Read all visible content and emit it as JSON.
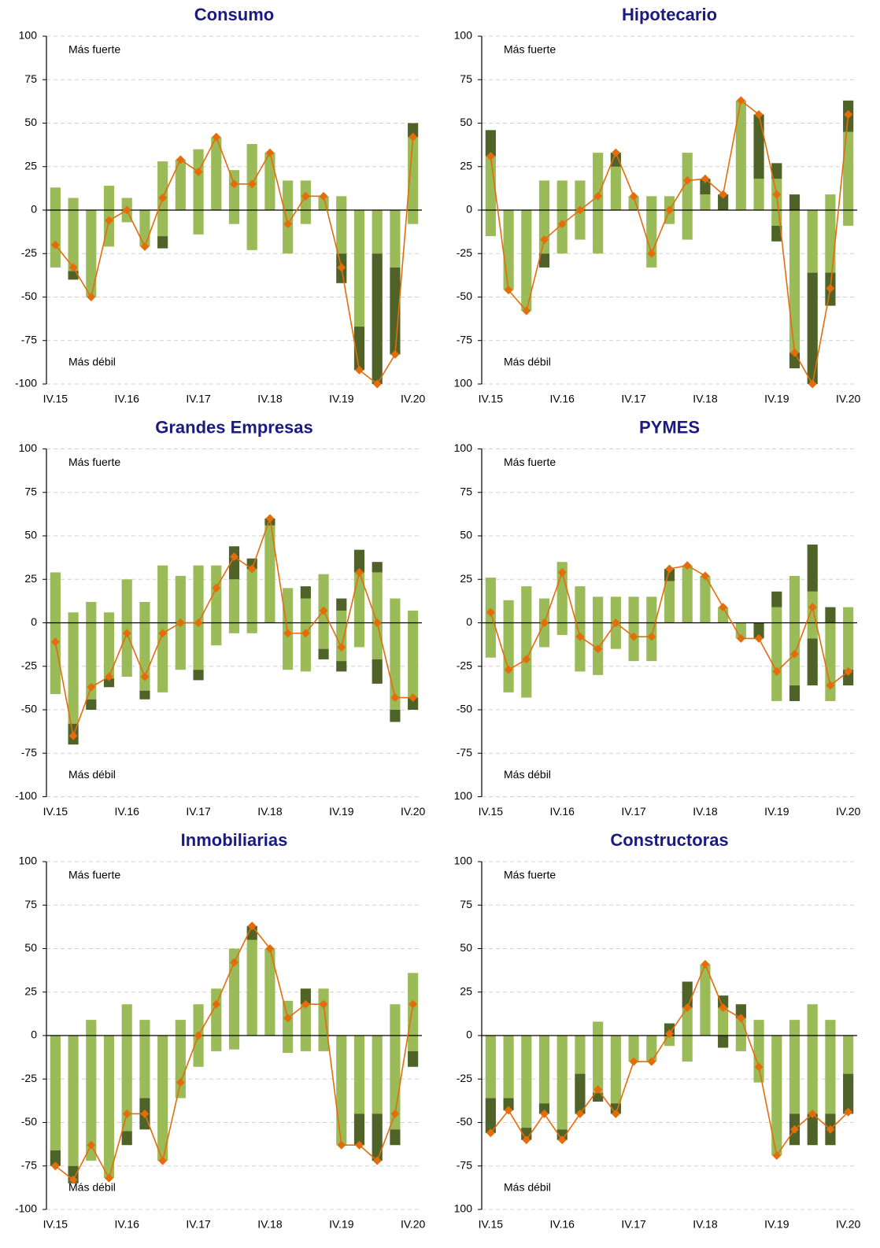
{
  "chart_data": [
    {
      "type": "bar",
      "title": "Consumo",
      "annotation_top": "Más fuerte",
      "annotation_bottom": "Más débil",
      "categories": [
        "IV.15",
        null,
        null,
        null,
        "IV.16",
        null,
        null,
        null,
        "IV.17",
        null,
        null,
        null,
        "IV.18",
        null,
        null,
        null,
        "IV.19",
        null,
        null,
        null,
        "IV.20"
      ],
      "ylim": [
        -100,
        100
      ],
      "yticks": [
        -100,
        -75,
        -50,
        -25,
        0,
        25,
        50,
        75,
        100
      ],
      "grid": true,
      "stacked": true,
      "series": [
        {
          "type": "bar",
          "color": "#9bbb59",
          "values": [
            13,
            7,
            0,
            14,
            7,
            0,
            28,
            29,
            35,
            42,
            23,
            38,
            33,
            17,
            17,
            8,
            8,
            0,
            0,
            0,
            42
          ]
        },
        {
          "type": "bar",
          "color": "#4f6228",
          "values": [
            0,
            0,
            0,
            0,
            0,
            0,
            0,
            0,
            0,
            0,
            0,
            0,
            0,
            0,
            0,
            0,
            0,
            0,
            0,
            0,
            8
          ]
        },
        {
          "type": "bar",
          "color": "#9bbb59",
          "values": [
            -33,
            -35,
            -50,
            -21,
            -7,
            -21,
            -15,
            0,
            -14,
            0,
            -8,
            -23,
            0,
            -25,
            -8,
            0,
            -25,
            -67,
            -25,
            -33,
            -8
          ]
        },
        {
          "type": "bar",
          "color": "#4f6228",
          "values": [
            0,
            -5,
            0,
            0,
            0,
            0,
            -7,
            0,
            0,
            0,
            0,
            0,
            0,
            0,
            0,
            0,
            -17,
            -25,
            -75,
            -50,
            0
          ]
        },
        {
          "type": "line",
          "color": "#e46c0a",
          "values": [
            -20,
            -33,
            -50,
            -6,
            0,
            -21,
            7,
            29,
            22,
            42,
            15,
            15,
            33,
            -8,
            8,
            8,
            -33,
            -92,
            -100,
            -83,
            42
          ]
        }
      ]
    },
    {
      "type": "bar",
      "title": "Hipotecario",
      "annotation_top": "Más fuerte",
      "annotation_bottom": "Más débil",
      "categories": [
        "IV.15",
        null,
        null,
        null,
        "IV.16",
        null,
        null,
        null,
        "IV.17",
        null,
        null,
        null,
        "IV.18",
        null,
        null,
        null,
        "IV.19",
        null,
        null,
        null,
        "IV.20"
      ],
      "ylim": [
        -100,
        100
      ],
      "yticks": [
        {
          "value": -100,
          "label": "100"
        },
        -75,
        -50,
        -25,
        0,
        25,
        50,
        75,
        100
      ],
      "grid": true,
      "stacked": true,
      "series": [
        {
          "type": "bar",
          "color": "#9bbb59",
          "values": [
            31,
            0,
            0,
            17,
            17,
            17,
            33,
            25,
            8,
            8,
            8,
            33,
            9,
            0,
            63,
            18,
            18,
            0,
            0,
            9,
            45
          ]
        },
        {
          "type": "bar",
          "color": "#4f6228",
          "values": [
            15,
            0,
            0,
            0,
            0,
            0,
            0,
            8,
            0,
            0,
            0,
            0,
            9,
            9,
            0,
            37,
            9,
            9,
            0,
            0,
            18
          ]
        },
        {
          "type": "bar",
          "color": "#9bbb59",
          "values": [
            -15,
            -46,
            -58,
            -25,
            -25,
            -17,
            -25,
            0,
            0,
            -33,
            -8,
            -17,
            0,
            0,
            0,
            0,
            -9,
            -82,
            -36,
            -36,
            -9
          ]
        },
        {
          "type": "bar",
          "color": "#4f6228",
          "values": [
            0,
            0,
            0,
            -8,
            0,
            0,
            0,
            0,
            0,
            0,
            0,
            0,
            0,
            0,
            0,
            0,
            -9,
            -9,
            -64,
            -19,
            0
          ]
        },
        {
          "type": "line",
          "color": "#e46c0a",
          "values": [
            31,
            -46,
            -58,
            -17,
            -8,
            0,
            8,
            33,
            8,
            -25,
            0,
            17,
            18,
            9,
            63,
            55,
            9,
            -82,
            -100,
            -45,
            55
          ]
        }
      ]
    },
    {
      "type": "bar",
      "title": "Grandes Empresas",
      "annotation_top": "Más fuerte",
      "annotation_bottom": "Más débil",
      "categories": [
        "IV.15",
        null,
        null,
        null,
        "IV.16",
        null,
        null,
        null,
        "IV.17",
        null,
        null,
        null,
        "IV.18",
        null,
        null,
        null,
        "IV.19",
        null,
        null,
        null,
        "IV.20"
      ],
      "ylim": [
        -100,
        100
      ],
      "yticks": [
        -100,
        -75,
        -50,
        -25,
        0,
        25,
        50,
        75,
        100
      ],
      "grid": true,
      "stacked": true,
      "series": [
        {
          "type": "bar",
          "color": "#9bbb59",
          "values": [
            29,
            6,
            12,
            6,
            25,
            12,
            33,
            27,
            33,
            33,
            25,
            31,
            56,
            20,
            14,
            28,
            7,
            29,
            29,
            14,
            7
          ]
        },
        {
          "type": "bar",
          "color": "#4f6228",
          "values": [
            0,
            0,
            0,
            0,
            0,
            0,
            0,
            0,
            0,
            0,
            19,
            6,
            4,
            0,
            7,
            0,
            7,
            13,
            6,
            0,
            0
          ]
        },
        {
          "type": "bar",
          "color": "#9bbb59",
          "values": [
            -41,
            -58,
            -44,
            -32,
            -31,
            -39,
            -40,
            -27,
            -27,
            -13,
            -6,
            -6,
            0,
            -27,
            -28,
            -15,
            -22,
            -14,
            -21,
            -50,
            -43
          ]
        },
        {
          "type": "bar",
          "color": "#4f6228",
          "values": [
            0,
            -12,
            -6,
            -5,
            0,
            -5,
            0,
            0,
            -6,
            0,
            0,
            0,
            0,
            0,
            0,
            -6,
            -6,
            0,
            -14,
            -7,
            -7
          ]
        },
        {
          "type": "line",
          "color": "#e46c0a",
          "values": [
            -11,
            -65,
            -37,
            -31,
            -6,
            -31,
            -6,
            0,
            0,
            20,
            38,
            31,
            60,
            -6,
            -6,
            7,
            -14,
            29,
            0,
            -43,
            -43
          ]
        }
      ]
    },
    {
      "type": "bar",
      "title": "PYMES",
      "annotation_top": "Más fuerte",
      "annotation_bottom": "Más débil",
      "categories": [
        "IV.15",
        null,
        null,
        null,
        "IV.16",
        null,
        null,
        null,
        "IV.17",
        null,
        null,
        null,
        "IV.18",
        null,
        null,
        null,
        "IV.19",
        null,
        null,
        null,
        "IV.20"
      ],
      "ylim": [
        -100,
        100
      ],
      "yticks": [
        {
          "value": -100,
          "label": "100"
        },
        -75,
        -50,
        -25,
        0,
        25,
        50,
        75,
        100
      ],
      "grid": true,
      "stacked": true,
      "series": [
        {
          "type": "bar",
          "color": "#9bbb59",
          "values": [
            26,
            13,
            21,
            14,
            35,
            21,
            15,
            15,
            15,
            15,
            24,
            33,
            27,
            9,
            0,
            0,
            9,
            27,
            18,
            0,
            9
          ]
        },
        {
          "type": "bar",
          "color": "#4f6228",
          "values": [
            0,
            0,
            0,
            0,
            0,
            0,
            0,
            0,
            0,
            0,
            7,
            0,
            0,
            0,
            0,
            0,
            9,
            0,
            27,
            9,
            0
          ]
        },
        {
          "type": "bar",
          "color": "#9bbb59",
          "values": [
            -20,
            -40,
            -43,
            -14,
            -7,
            -28,
            -30,
            -15,
            -22,
            -22,
            0,
            0,
            0,
            0,
            -9,
            0,
            -45,
            -36,
            -9,
            -45,
            -27
          ]
        },
        {
          "type": "bar",
          "color": "#4f6228",
          "values": [
            0,
            0,
            0,
            0,
            0,
            0,
            0,
            0,
            0,
            0,
            0,
            0,
            0,
            0,
            0,
            -9,
            0,
            -9,
            -27,
            0,
            -9
          ]
        },
        {
          "type": "line",
          "color": "#e46c0a",
          "values": [
            6,
            -27,
            -21,
            0,
            29,
            -8,
            -15,
            0,
            -8,
            -8,
            31,
            33,
            27,
            9,
            -9,
            -9,
            -28,
            -18,
            9,
            -36,
            -28
          ]
        }
      ]
    },
    {
      "type": "bar",
      "title": "Inmobiliarias",
      "annotation_top": "Más fuerte",
      "annotation_bottom": "Más débil",
      "categories": [
        "IV.15",
        null,
        null,
        null,
        "IV.16",
        null,
        null,
        null,
        "IV.17",
        null,
        null,
        null,
        "IV.18",
        null,
        null,
        null,
        "IV.19",
        null,
        null,
        null,
        "IV.20"
      ],
      "ylim": [
        -100,
        100
      ],
      "yticks": [
        -100,
        -75,
        -50,
        -25,
        0,
        25,
        50,
        75,
        100
      ],
      "grid": true,
      "stacked": true,
      "series": [
        {
          "type": "bar",
          "color": "#9bbb59",
          "values": [
            0,
            0,
            9,
            0,
            18,
            9,
            0,
            9,
            18,
            27,
            50,
            55,
            50,
            20,
            18,
            27,
            0,
            0,
            0,
            18,
            36
          ]
        },
        {
          "type": "bar",
          "color": "#4f6228",
          "values": [
            0,
            0,
            0,
            0,
            0,
            0,
            0,
            0,
            0,
            0,
            0,
            8,
            0,
            0,
            9,
            0,
            0,
            0,
            0,
            0,
            0
          ]
        },
        {
          "type": "bar",
          "color": "#9bbb59",
          "values": [
            -66,
            -75,
            -72,
            -82,
            -55,
            -36,
            -72,
            -36,
            -18,
            -9,
            -8,
            0,
            0,
            -10,
            -9,
            -9,
            -63,
            -45,
            -45,
            -54,
            -9
          ]
        },
        {
          "type": "bar",
          "color": "#4f6228",
          "values": [
            -9,
            -10,
            0,
            0,
            -8,
            -18,
            0,
            0,
            0,
            0,
            0,
            0,
            0,
            0,
            0,
            0,
            0,
            -18,
            -27,
            -9,
            -9
          ]
        },
        {
          "type": "line",
          "color": "#e46c0a",
          "values": [
            -75,
            -83,
            -63,
            -82,
            -45,
            -45,
            -72,
            -27,
            0,
            18,
            42,
            63,
            50,
            10,
            18,
            18,
            -63,
            -63,
            -72,
            -45,
            18
          ]
        }
      ]
    },
    {
      "type": "bar",
      "title": "Constructoras",
      "annotation_top": "Más fuerte",
      "annotation_bottom": "Más débil",
      "categories": [
        "IV.15",
        null,
        null,
        null,
        "IV.16",
        null,
        null,
        null,
        "IV.17",
        null,
        null,
        null,
        "IV.18",
        null,
        null,
        null,
        "IV.19",
        null,
        null,
        null,
        "IV.20"
      ],
      "ylim": [
        -100,
        100
      ],
      "yticks": [
        {
          "value": -100,
          "label": "100"
        },
        -75,
        -50,
        -25,
        0,
        25,
        50,
        75,
        100
      ],
      "grid": true,
      "stacked": true,
      "series": [
        {
          "type": "bar",
          "color": "#9bbb59",
          "values": [
            0,
            0,
            0,
            0,
            0,
            0,
            8,
            0,
            0,
            0,
            0,
            16,
            41,
            16,
            10,
            9,
            0,
            9,
            18,
            9,
            0
          ]
        },
        {
          "type": "bar",
          "color": "#4f6228",
          "values": [
            0,
            0,
            0,
            0,
            0,
            0,
            0,
            0,
            0,
            0,
            7,
            15,
            0,
            7,
            8,
            0,
            0,
            0,
            0,
            0,
            0
          ]
        },
        {
          "type": "bar",
          "color": "#9bbb59",
          "values": [
            -36,
            -36,
            -53,
            -39,
            -54,
            -22,
            -33,
            -39,
            -15,
            -15,
            -6,
            -15,
            0,
            0,
            -9,
            -27,
            -69,
            -45,
            -45,
            -45,
            -22
          ]
        },
        {
          "type": "bar",
          "color": "#4f6228",
          "values": [
            -20,
            -7,
            -7,
            -6,
            -6,
            -23,
            -5,
            -6,
            0,
            0,
            0,
            0,
            0,
            -7,
            0,
            0,
            0,
            -18,
            -18,
            -18,
            -23
          ]
        },
        {
          "type": "line",
          "color": "#e46c0a",
          "values": [
            -56,
            -43,
            -60,
            -45,
            -60,
            -45,
            -31,
            -45,
            -15,
            -15,
            1,
            16,
            41,
            16,
            10,
            -18,
            -69,
            -54,
            -45,
            -54,
            -44
          ]
        }
      ]
    }
  ]
}
